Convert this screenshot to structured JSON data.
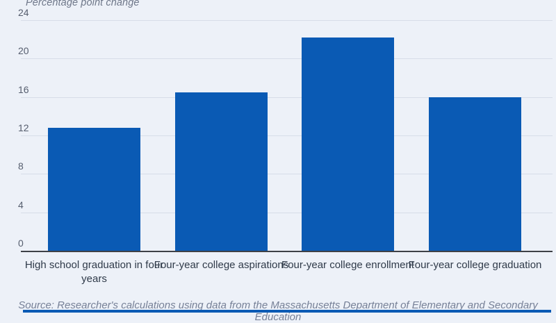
{
  "chart_data": {
    "type": "bar",
    "title": "Percentage point change",
    "categories": [
      "High school graduation in four years",
      "Four-year college aspirations",
      "Four-year college enrollment",
      "Four-year college graduation"
    ],
    "values": [
      12.8,
      16.5,
      22.2,
      16.0
    ],
    "xlabel": "",
    "ylabel": "Percentage point change",
    "ylim": [
      0,
      24
    ],
    "yticks": [
      0,
      4,
      8,
      12,
      16,
      20,
      24
    ],
    "grid": true,
    "legend": "none",
    "bar_color": "#0A5AB4",
    "background_color": "#EDF1F8"
  },
  "source_note": "Source: Researcher's calculations using data from the Massachusetts Department of Elementary and Secondary Education",
  "footer": {
    "accent_color": "#0A5AB4"
  }
}
